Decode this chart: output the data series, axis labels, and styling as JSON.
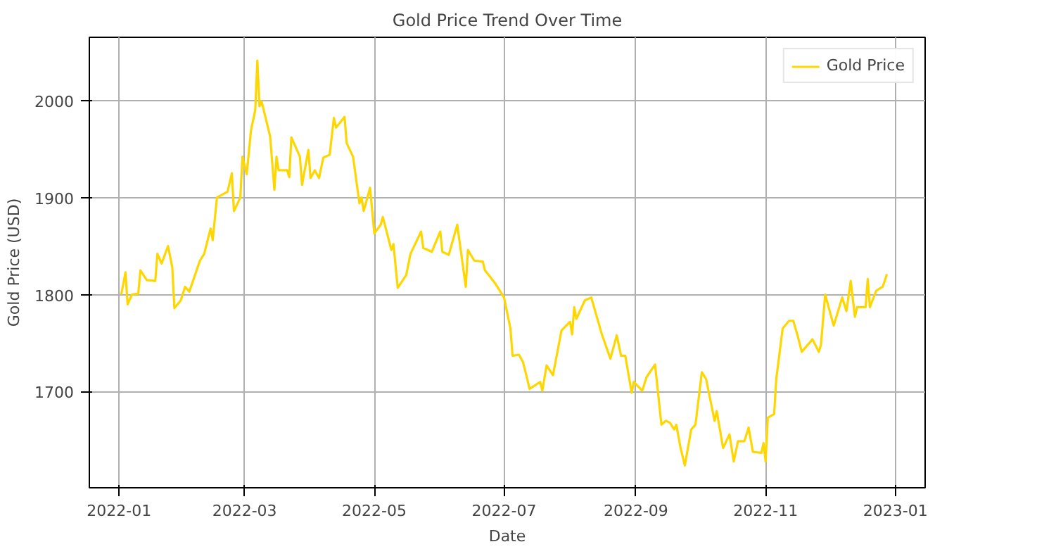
{
  "chart_data": {
    "type": "line",
    "title": "Gold Price Trend Over Time",
    "xlabel": "Date",
    "ylabel": "Gold Price (USD)",
    "x": [
      "2022-01-02",
      "2022-01-04",
      "2022-01-05",
      "2022-01-07",
      "2022-01-10",
      "2022-01-11",
      "2022-01-14",
      "2022-01-18",
      "2022-01-19",
      "2022-01-21",
      "2022-01-24",
      "2022-01-26",
      "2022-01-27",
      "2022-01-30",
      "2022-02-01",
      "2022-02-03",
      "2022-02-08",
      "2022-02-10",
      "2022-02-13",
      "2022-02-14",
      "2022-02-16",
      "2022-02-21",
      "2022-02-23",
      "2022-02-24",
      "2022-02-27",
      "2022-02-28",
      "2022-03-02",
      "2022-03-04",
      "2022-03-06",
      "2022-03-07",
      "2022-03-08",
      "2022-03-09",
      "2022-03-13",
      "2022-03-15",
      "2022-03-16",
      "2022-03-17",
      "2022-03-21",
      "2022-03-22",
      "2022-03-23",
      "2022-03-27",
      "2022-03-28",
      "2022-03-31",
      "2022-04-01",
      "2022-04-03",
      "2022-04-05",
      "2022-04-07",
      "2022-04-10",
      "2022-04-12",
      "2022-04-13",
      "2022-04-17",
      "2022-04-18",
      "2022-04-21",
      "2022-04-24",
      "2022-04-25",
      "2022-04-26",
      "2022-04-29",
      "2022-05-01",
      "2022-05-04",
      "2022-05-05",
      "2022-05-09",
      "2022-05-10",
      "2022-05-12",
      "2022-05-16",
      "2022-05-18",
      "2022-05-23",
      "2022-05-24",
      "2022-05-28",
      "2022-06-01",
      "2022-06-02",
      "2022-06-05",
      "2022-06-09",
      "2022-06-13",
      "2022-06-14",
      "2022-06-17",
      "2022-06-21",
      "2022-06-22",
      "2022-06-27",
      "2022-07-01",
      "2022-07-04",
      "2022-07-05",
      "2022-07-08",
      "2022-07-10",
      "2022-07-13",
      "2022-07-18",
      "2022-07-19",
      "2022-07-21",
      "2022-07-24",
      "2022-07-28",
      "2022-08-01",
      "2022-08-02",
      "2022-08-03",
      "2022-08-04",
      "2022-08-08",
      "2022-08-11",
      "2022-08-16",
      "2022-08-20",
      "2022-08-23",
      "2022-08-25",
      "2022-08-27",
      "2022-08-30",
      "2022-08-31",
      "2022-09-04",
      "2022-09-06",
      "2022-09-10",
      "2022-09-13",
      "2022-09-15",
      "2022-09-17",
      "2022-09-19",
      "2022-09-20",
      "2022-09-22",
      "2022-09-24",
      "2022-09-27",
      "2022-09-29",
      "2022-10-02",
      "2022-10-04",
      "2022-10-08",
      "2022-10-09",
      "2022-10-12",
      "2022-10-15",
      "2022-10-17",
      "2022-10-19",
      "2022-10-22",
      "2022-10-24",
      "2022-10-26",
      "2022-10-30",
      "2022-10-31",
      "2022-11-01",
      "2022-11-02",
      "2022-11-05",
      "2022-11-06",
      "2022-11-09",
      "2022-11-12",
      "2022-11-14",
      "2022-11-16",
      "2022-11-18",
      "2022-11-23",
      "2022-11-26",
      "2022-11-27",
      "2022-11-29",
      "2022-12-03",
      "2022-12-07",
      "2022-12-09",
      "2022-12-11",
      "2022-12-13",
      "2022-12-14",
      "2022-12-18",
      "2022-12-19",
      "2022-12-20",
      "2022-12-23",
      "2022-12-26",
      "2022-12-27",
      "2022-12-28"
    ],
    "series": [
      {
        "name": "Gold Price",
        "color": "#ffd700",
        "values": [
          1800,
          1823,
          1790,
          1800,
          1801,
          1825,
          1815,
          1814,
          1842,
          1832,
          1850,
          1828,
          1786,
          1794,
          1808,
          1803,
          1835,
          1842,
          1868,
          1856,
          1900,
          1906,
          1925,
          1886,
          1900,
          1942,
          1924,
          1969,
          1990,
          2041,
          1994,
          1999,
          1963,
          1908,
          1942,
          1928,
          1928,
          1921,
          1962,
          1942,
          1913,
          1949,
          1920,
          1928,
          1920,
          1941,
          1944,
          1982,
          1972,
          1983,
          1956,
          1942,
          1894,
          1900,
          1886,
          1910,
          1863,
          1872,
          1880,
          1846,
          1852,
          1807,
          1820,
          1842,
          1865,
          1848,
          1844,
          1865,
          1844,
          1841,
          1872,
          1808,
          1846,
          1835,
          1834,
          1825,
          1811,
          1797,
          1765,
          1737,
          1738,
          1730,
          1703,
          1710,
          1701,
          1727,
          1717,
          1763,
          1772,
          1759,
          1787,
          1775,
          1794,
          1797,
          1759,
          1734,
          1758,
          1737,
          1737,
          1699,
          1710,
          1701,
          1715,
          1728,
          1666,
          1670,
          1668,
          1661,
          1666,
          1642,
          1624,
          1661,
          1666,
          1720,
          1713,
          1670,
          1680,
          1642,
          1656,
          1628,
          1649,
          1649,
          1663,
          1638,
          1637,
          1647,
          1628,
          1673,
          1677,
          1713,
          1765,
          1773,
          1773,
          1758,
          1741,
          1754,
          1741,
          1748,
          1800,
          1768,
          1797,
          1783,
          1814,
          1777,
          1787,
          1787,
          1816,
          1787,
          1804,
          1808,
          1814,
          1821
        ]
      }
    ],
    "xlim": [
      "2021-12-18",
      "2023-01-15"
    ],
    "ylim": [
      1601,
      2065
    ],
    "xticks": [
      {
        "value": "2022-01-01",
        "label": "2022-01"
      },
      {
        "value": "2022-03-01",
        "label": "2022-03"
      },
      {
        "value": "2022-05-01",
        "label": "2022-05"
      },
      {
        "value": "2022-07-01",
        "label": "2022-07"
      },
      {
        "value": "2022-09-01",
        "label": "2022-09"
      },
      {
        "value": "2022-11-01",
        "label": "2022-11"
      },
      {
        "value": "2023-01-01",
        "label": "2023-01"
      }
    ],
    "yticks": [
      1700,
      1800,
      1900,
      2000
    ],
    "grid": true,
    "legend": "top right",
    "line_style": "solid"
  }
}
